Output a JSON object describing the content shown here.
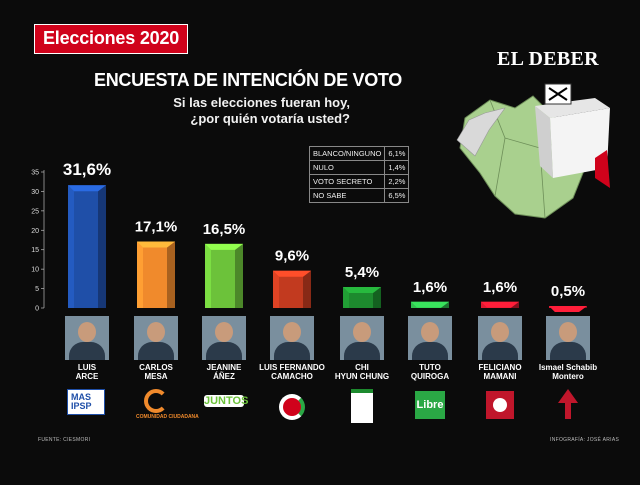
{
  "header": {
    "tag": "Elecciones 2020",
    "brand": "EL DEBER",
    "title": "ENCUESTA DE INTENCIÓN DE VOTO",
    "subtitle_line1": "Si las elecciones fueran hoy,",
    "subtitle_line2": "¿por quién votaría usted?"
  },
  "other_votes": [
    {
      "label": "BLANCO/NINGUNO",
      "value": "6,1%"
    },
    {
      "label": "NULO",
      "value": "1,4%"
    },
    {
      "label": "VOTO SECRETO",
      "value": "2,2%"
    },
    {
      "label": "NO SABE",
      "value": "6,5%"
    }
  ],
  "chart_data": {
    "type": "bar",
    "title": "ENCUESTA DE INTENCIÓN DE VOTO",
    "ylim": [
      0,
      35
    ],
    "yticks": [
      0,
      5,
      10,
      15,
      20,
      25,
      30,
      35
    ],
    "categories": [
      "LUIS ARCE",
      "CARLOS MESA",
      "JEANINE ÁÑEZ",
      "LUIS FERNANDO CAMACHO",
      "CHI HYUN CHUNG",
      "TUTO QUIROGA",
      "FELICIANO MAMANI",
      "Ismael Schabib Montero"
    ],
    "values": [
      31.6,
      17.1,
      16.5,
      9.6,
      5.4,
      1.6,
      1.6,
      0.5
    ],
    "value_labels": [
      "31,6%",
      "17,1%",
      "16,5%",
      "9,6%",
      "5,4%",
      "1,6%",
      "1,6%",
      "0,5%"
    ],
    "colors": [
      "#1f4fa8",
      "#f08a2c",
      "#6cc23a",
      "#c23a1f",
      "#1d8a2e",
      "#2aa845",
      "#c0162b",
      "#c0162b"
    ],
    "grid": false,
    "legend": "none"
  },
  "candidates": [
    {
      "line1": "LUIS",
      "line2": "ARCE",
      "party": "MAS IPSP",
      "party_color": "#1f4fa8"
    },
    {
      "line1": "CARLOS",
      "line2": "MESA",
      "party": "COMUNIDAD CIUDADANA",
      "party_color": "#f08a2c"
    },
    {
      "line1": "JEANINE",
      "line2": "ÁÑEZ",
      "party": "JUNTOS",
      "party_color": "#6cc23a"
    },
    {
      "line1": "LUIS FERNANDO",
      "line2": "CAMACHO",
      "party": "",
      "party_color": "#2aa845"
    },
    {
      "line1": "CHI",
      "line2": "HYUN CHUNG",
      "party": "",
      "party_color": "#1d8a2e"
    },
    {
      "line1": "TUTO",
      "line2": "QUIROGA",
      "party": "Libre",
      "party_color": "#2aa845"
    },
    {
      "line1": "FELICIANO",
      "line2": "MAMANI",
      "party": "",
      "party_color": "#c0162b"
    },
    {
      "line1": "Ismael Schabib",
      "line2": "Montero",
      "party": "",
      "party_color": "#c0162b"
    }
  ],
  "footer": {
    "source": "FUENTE: CIESMORI",
    "credit": "INFOGRAFÍA: JOSÉ ARIAS"
  }
}
